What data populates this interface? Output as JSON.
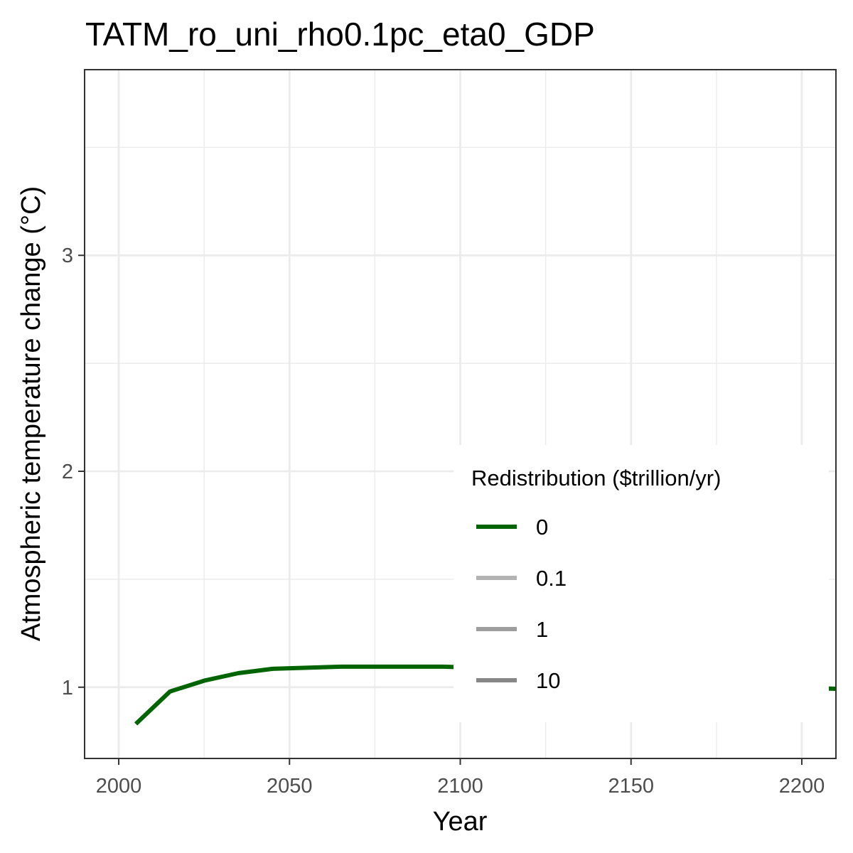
{
  "chart_data": {
    "type": "line",
    "title": "TATM_ro_uni_rho0.1pc_eta0_GDP",
    "xlabel": "Year",
    "ylabel": "Atmospheric temperature change (°C)",
    "xlim": [
      1990,
      2210
    ],
    "ylim": [
      0.67,
      3.86
    ],
    "x_major_ticks": [
      2000,
      2050,
      2100,
      2150,
      2200
    ],
    "x_minor_ticks": [
      2025,
      2075,
      2125,
      2175
    ],
    "y_major_ticks": [
      1,
      2,
      3
    ],
    "y_minor_ticks": [
      1.5,
      2.5,
      3.5
    ],
    "grid": true,
    "legend": {
      "title": "Redistribution ($trillion/yr)",
      "placement": "inside-bottom-right",
      "entries": [
        {
          "label": "0",
          "color": "#006400"
        },
        {
          "label": "0.1",
          "color": "#b3b3b3"
        },
        {
          "label": "1",
          "color": "#9e9e9e"
        },
        {
          "label": "10",
          "color": "#878787"
        }
      ]
    },
    "series": [
      {
        "name": "0",
        "color": "#006400",
        "x": [
          2005,
          2015,
          2025,
          2035,
          2045,
          2055,
          2065,
          2075,
          2085,
          2095,
          2105,
          2115,
          2125,
          2135,
          2145,
          2155,
          2165,
          2175,
          2185,
          2195,
          2205,
          2215
        ],
        "y": [
          0.83,
          0.98,
          1.03,
          1.065,
          1.085,
          1.09,
          1.095,
          1.095,
          1.095,
          1.095,
          1.09,
          1.085,
          1.075,
          1.065,
          1.055,
          1.045,
          1.035,
          1.025,
          1.015,
          1.005,
          0.995,
          0.99
        ]
      }
    ]
  }
}
